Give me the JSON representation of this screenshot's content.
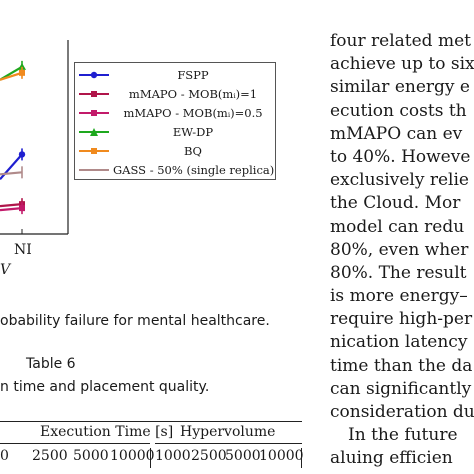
{
  "chart_data": {
    "type": "line",
    "x_visible": [
      "NI"
    ],
    "axis_label_fragment": "V",
    "series": [
      {
        "name": "FSPP",
        "color": "#1f1fd0",
        "marker": "circle",
        "values": [
          0.55,
          0.8
        ]
      },
      {
        "name": "mMAPO - MOB(m_i)=1",
        "color": "#b0154a",
        "marker": "square",
        "values": [
          0.28,
          0.3
        ]
      },
      {
        "name": "mMAPO - MOB(m_i)=0.5",
        "color": "#c21a6a",
        "marker": "square",
        "values": [
          0.24,
          0.26
        ]
      },
      {
        "name": "EW-DP",
        "color": "#1ea81e",
        "marker": "triangle",
        "values": [
          1.55,
          1.68
        ]
      },
      {
        "name": "BQ",
        "color": "#f08a1e",
        "marker": "square",
        "values": [
          1.55,
          1.62
        ]
      },
      {
        "name": "GASS - 50% (single replica)",
        "color": "#b08a8a",
        "marker": "none",
        "values": [
          0.6,
          0.62
        ]
      }
    ]
  },
  "legend": [
    {
      "label": "FSPP",
      "color": "#1f1fd0",
      "marker": "circle"
    },
    {
      "label": "mMAPO - MOB(mᵢ)=1",
      "color": "#b0154a",
      "marker": "square"
    },
    {
      "label": "mMAPO - MOB(mᵢ)=0.5",
      "color": "#c21a6a",
      "marker": "square"
    },
    {
      "label": "EW-DP",
      "color": "#1ea81e",
      "marker": "triangle"
    },
    {
      "label": "BQ",
      "color": "#f08a1e",
      "marker": "square"
    },
    {
      "label": "GASS - 50% (single replica)",
      "color": "#b08a8a",
      "marker": "none"
    }
  ],
  "figure_caption": "obability failure for mental healthcare.",
  "table": {
    "title": "Table 6",
    "caption": "n time and placement quality.",
    "group_headers": [
      "Execution Time [s]",
      "Hypervolume"
    ],
    "columns": [
      "0",
      "2500",
      "5000",
      "10000",
      "1000",
      "2500",
      "5000",
      "10000"
    ]
  },
  "body_text": {
    "lines": [
      "four related met",
      "achieve up to six",
      "similar energy e",
      "ecution costs th",
      "mMAPO can ev",
      "to 40%. Howeve",
      "exclusively relie",
      "the Cloud. Mor",
      "model can redu",
      "80%, even wher",
      "80%. The result",
      "is more energy–",
      "require high-per",
      "nication latency",
      "time than the da",
      "can significantly",
      "consideration du"
    ],
    "next_paragraph": "In the future",
    "cut_line": "aluing efficien"
  }
}
